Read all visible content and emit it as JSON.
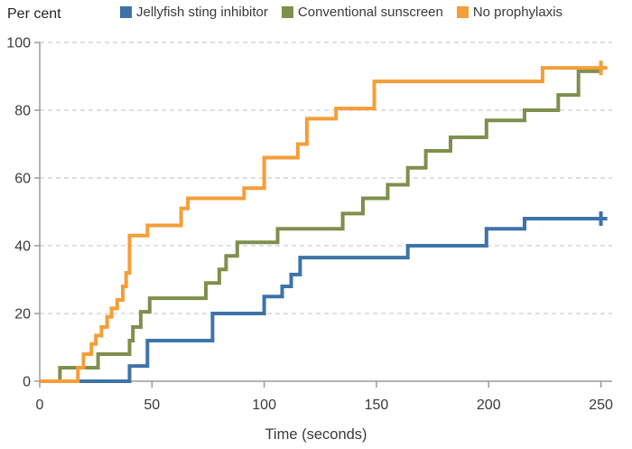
{
  "chart_data": {
    "type": "line",
    "subtype": "step-cumulative-incidence",
    "title": "",
    "ylabel": "Per cent",
    "xlabel": "Time (seconds)",
    "xlim": [
      0,
      255
    ],
    "ylim": [
      0,
      100
    ],
    "xticks": [
      0,
      50,
      100,
      150,
      200,
      250
    ],
    "yticks": [
      0,
      20,
      40,
      60,
      80,
      100
    ],
    "grid": "horizontal-dashed",
    "legend_position": "top",
    "axis_color": "#9a9a9a",
    "grid_color": "#cdcdcd",
    "series": [
      {
        "name": "Jellyfish sting inhibitor",
        "color": "#3E73A8",
        "censored_at_end": true,
        "end_time": 250,
        "steps": [
          [
            0,
            0
          ],
          [
            40,
            4.5
          ],
          [
            48,
            12
          ],
          [
            77,
            20
          ],
          [
            100,
            25
          ],
          [
            108,
            28
          ],
          [
            112,
            31.5
          ],
          [
            116,
            36.5
          ],
          [
            164,
            40
          ],
          [
            199,
            45
          ],
          [
            216,
            48
          ]
        ]
      },
      {
        "name": "Conventional sunscreen",
        "color": "#7F8F4D",
        "censored_at_end": false,
        "end_time": 250,
        "steps": [
          [
            0,
            0
          ],
          [
            9,
            4
          ],
          [
            26,
            8
          ],
          [
            40,
            12
          ],
          [
            41.5,
            16
          ],
          [
            45,
            20.5
          ],
          [
            49,
            24.5
          ],
          [
            74,
            29
          ],
          [
            80,
            33
          ],
          [
            83,
            37
          ],
          [
            88,
            41
          ],
          [
            106,
            45
          ],
          [
            135,
            49.5
          ],
          [
            144,
            54
          ],
          [
            155,
            58
          ],
          [
            164,
            63
          ],
          [
            172,
            68
          ],
          [
            183,
            72
          ],
          [
            199,
            77
          ],
          [
            216,
            80
          ],
          [
            231,
            84.5
          ],
          [
            240,
            91.5
          ]
        ]
      },
      {
        "name": "No prophylaxis",
        "color": "#F59E38",
        "censored_at_end": true,
        "end_time": 250,
        "steps": [
          [
            0,
            0
          ],
          [
            17,
            4
          ],
          [
            19.5,
            8
          ],
          [
            23,
            11
          ],
          [
            25,
            13.5
          ],
          [
            27.5,
            16
          ],
          [
            30,
            19
          ],
          [
            32,
            21.5
          ],
          [
            34.5,
            24
          ],
          [
            37,
            28
          ],
          [
            38.5,
            32
          ],
          [
            40,
            43
          ],
          [
            48,
            46
          ],
          [
            63,
            51
          ],
          [
            66,
            54
          ],
          [
            91,
            57
          ],
          [
            100,
            66
          ],
          [
            115,
            70
          ],
          [
            119,
            77.5
          ],
          [
            132,
            80.5
          ],
          [
            149,
            88.5
          ],
          [
            224,
            92.5
          ]
        ]
      }
    ]
  }
}
